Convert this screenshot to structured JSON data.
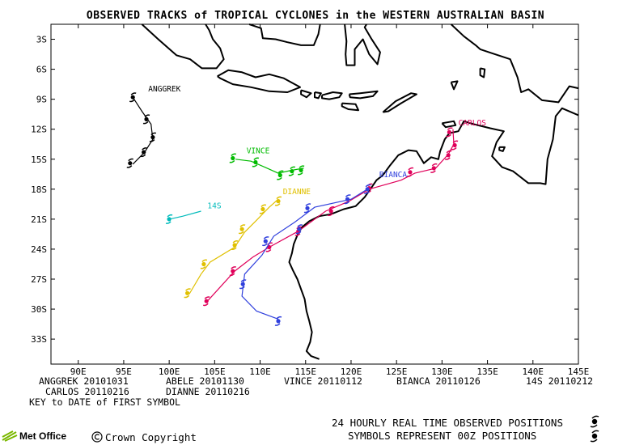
{
  "title": "OBSERVED TRACKS of TROPICAL CYCLONES in the WESTERN AUSTRALIAN BASIN",
  "map": {
    "lon_range": [
      87,
      145
    ],
    "lat_range": [
      -35.5,
      -1.5
    ],
    "lat_ticks": [
      "3S",
      "6S",
      "9S",
      "12S",
      "15S",
      "18S",
      "21S",
      "24S",
      "27S",
      "30S",
      "33S"
    ],
    "lon_ticks": [
      "90E",
      "95E",
      "100E",
      "105E",
      "110E",
      "115E",
      "120E",
      "125E",
      "130E",
      "135E",
      "140E",
      "145E"
    ]
  },
  "storms": [
    {
      "name": "ANGGREK",
      "color": "#000000",
      "label_lon": 97.7,
      "label_lat": -8.2,
      "track": [
        [
          96,
          -8.8
        ],
        [
          97,
          -10.2
        ],
        [
          98,
          -11.5
        ],
        [
          98.2,
          -13
        ],
        [
          97.3,
          -14.3
        ],
        [
          96,
          -15.5
        ]
      ],
      "symbols": [
        [
          96,
          -8.8
        ],
        [
          97.5,
          -11
        ],
        [
          98.2,
          -12.8
        ],
        [
          97.2,
          -14.3
        ],
        [
          95.7,
          -15.4
        ]
      ]
    },
    {
      "name": "VINCE",
      "color": "#00bb00",
      "label_lon": 108.5,
      "label_lat": -14.4,
      "track": [
        [
          107.3,
          -15
        ],
        [
          109,
          -15.2
        ],
        [
          110.5,
          -15.8
        ],
        [
          112,
          -16.4
        ],
        [
          113.5,
          -16.1
        ],
        [
          114.8,
          -15.9
        ]
      ],
      "symbols": [
        [
          107,
          -14.9
        ],
        [
          109.5,
          -15.3
        ],
        [
          112.2,
          -16.6
        ],
        [
          113.5,
          -16.2
        ],
        [
          114.5,
          -16.1
        ]
      ]
    },
    {
      "name": "DIANNE",
      "color": "#e0c000",
      "label_lon": 112.5,
      "label_lat": -18.5,
      "track": [
        [
          112,
          -19
        ],
        [
          111,
          -19.8
        ],
        [
          109.5,
          -21.2
        ],
        [
          108.3,
          -22.3
        ],
        [
          107.2,
          -23.8
        ],
        [
          104.5,
          -25.3
        ],
        [
          103.5,
          -26.5
        ],
        [
          102.2,
          -28.5
        ]
      ],
      "symbols": [
        [
          112,
          -19.2
        ],
        [
          110.3,
          -20
        ],
        [
          108,
          -22
        ],
        [
          107.2,
          -23.6
        ],
        [
          103.8,
          -25.5
        ],
        [
          102,
          -28.4
        ]
      ]
    },
    {
      "name": "14S",
      "color": "#00bbbb",
      "label_lon": 104.2,
      "label_lat": -19.9,
      "track": [
        [
          100,
          -21
        ],
        [
          101.5,
          -20.7
        ],
        [
          103.5,
          -20.2
        ]
      ],
      "symbols": [
        [
          100,
          -21
        ]
      ]
    },
    {
      "name": "CARLOS",
      "color": "#e0005a",
      "label_lon": 131.8,
      "label_lat": -11.6,
      "track": [
        [
          131.2,
          -12
        ],
        [
          131.3,
          -13.5
        ],
        [
          130.7,
          -14.5
        ],
        [
          129.3,
          -15.9
        ],
        [
          127,
          -16.4
        ],
        [
          125.5,
          -17.1
        ],
        [
          122,
          -18
        ],
        [
          119.8,
          -19.2
        ],
        [
          117.2,
          -20.2
        ],
        [
          114.2,
          -22.2
        ],
        [
          111,
          -23.8
        ],
        [
          109.2,
          -24.8
        ],
        [
          107.2,
          -26.2
        ],
        [
          104.2,
          -29.2
        ]
      ],
      "symbols": [
        [
          130.8,
          -12.3
        ],
        [
          131.4,
          -13.6
        ],
        [
          130.7,
          -14.6
        ],
        [
          129.1,
          -15.9
        ],
        [
          126.5,
          -16.3
        ],
        [
          122,
          -17.9
        ],
        [
          117.8,
          -20.2
        ],
        [
          114.2,
          -22.2
        ],
        [
          111,
          -23.8
        ],
        [
          107,
          -26.2
        ],
        [
          104.1,
          -29.2
        ]
      ]
    },
    {
      "name": "BIANCA",
      "color": "#3040dd",
      "label_lon": 123.1,
      "label_lat": -16.8,
      "track": [
        [
          121.8,
          -18
        ],
        [
          120,
          -19
        ],
        [
          116,
          -19.8
        ],
        [
          113.8,
          -21.3
        ],
        [
          111.5,
          -22.7
        ],
        [
          110.2,
          -24.6
        ],
        [
          108.3,
          -26.5
        ],
        [
          108,
          -28.7
        ],
        [
          109.6,
          -30.2
        ],
        [
          112,
          -31
        ]
      ],
      "symbols": [
        [
          121.8,
          -18
        ],
        [
          119.6,
          -19
        ],
        [
          115.2,
          -19.9
        ],
        [
          114.3,
          -22
        ],
        [
          110.6,
          -23.2
        ],
        [
          108.1,
          -27.5
        ],
        [
          112,
          -31.2
        ]
      ]
    }
  ],
  "key": {
    "entries": [
      {
        "name": "ANGGREK",
        "date": "20101031"
      },
      {
        "name": "ABELE",
        "date": "20101130"
      },
      {
        "name": "VINCE",
        "date": "20110112"
      },
      {
        "name": "BIANCA",
        "date": "20110126"
      },
      {
        "name": "14S",
        "date": "20110212"
      },
      {
        "name": "CARLOS",
        "date": "20110216"
      },
      {
        "name": "DIANNE",
        "date": "20110216"
      }
    ],
    "row1": [
      "ANGGREK 20101031",
      "ABELE 20101130",
      "VINCE 20110112",
      "BIANCA 20110126",
      "14S 20110212"
    ],
    "row2": [
      "CARLOS 20110216",
      "DIANNE 20110216"
    ],
    "caption": "KEY to DATE of FIRST SYMBOL"
  },
  "footer": {
    "logo": "Met Office",
    "copyright": "Crown Copyright",
    "note1": "24 HOURLY REAL TIME OBSERVED POSITIONS",
    "note2": "SYMBOLS REPRESENT 00Z POSITIONS"
  },
  "colors": {
    "frame": "#000000",
    "coast": "#000000"
  }
}
